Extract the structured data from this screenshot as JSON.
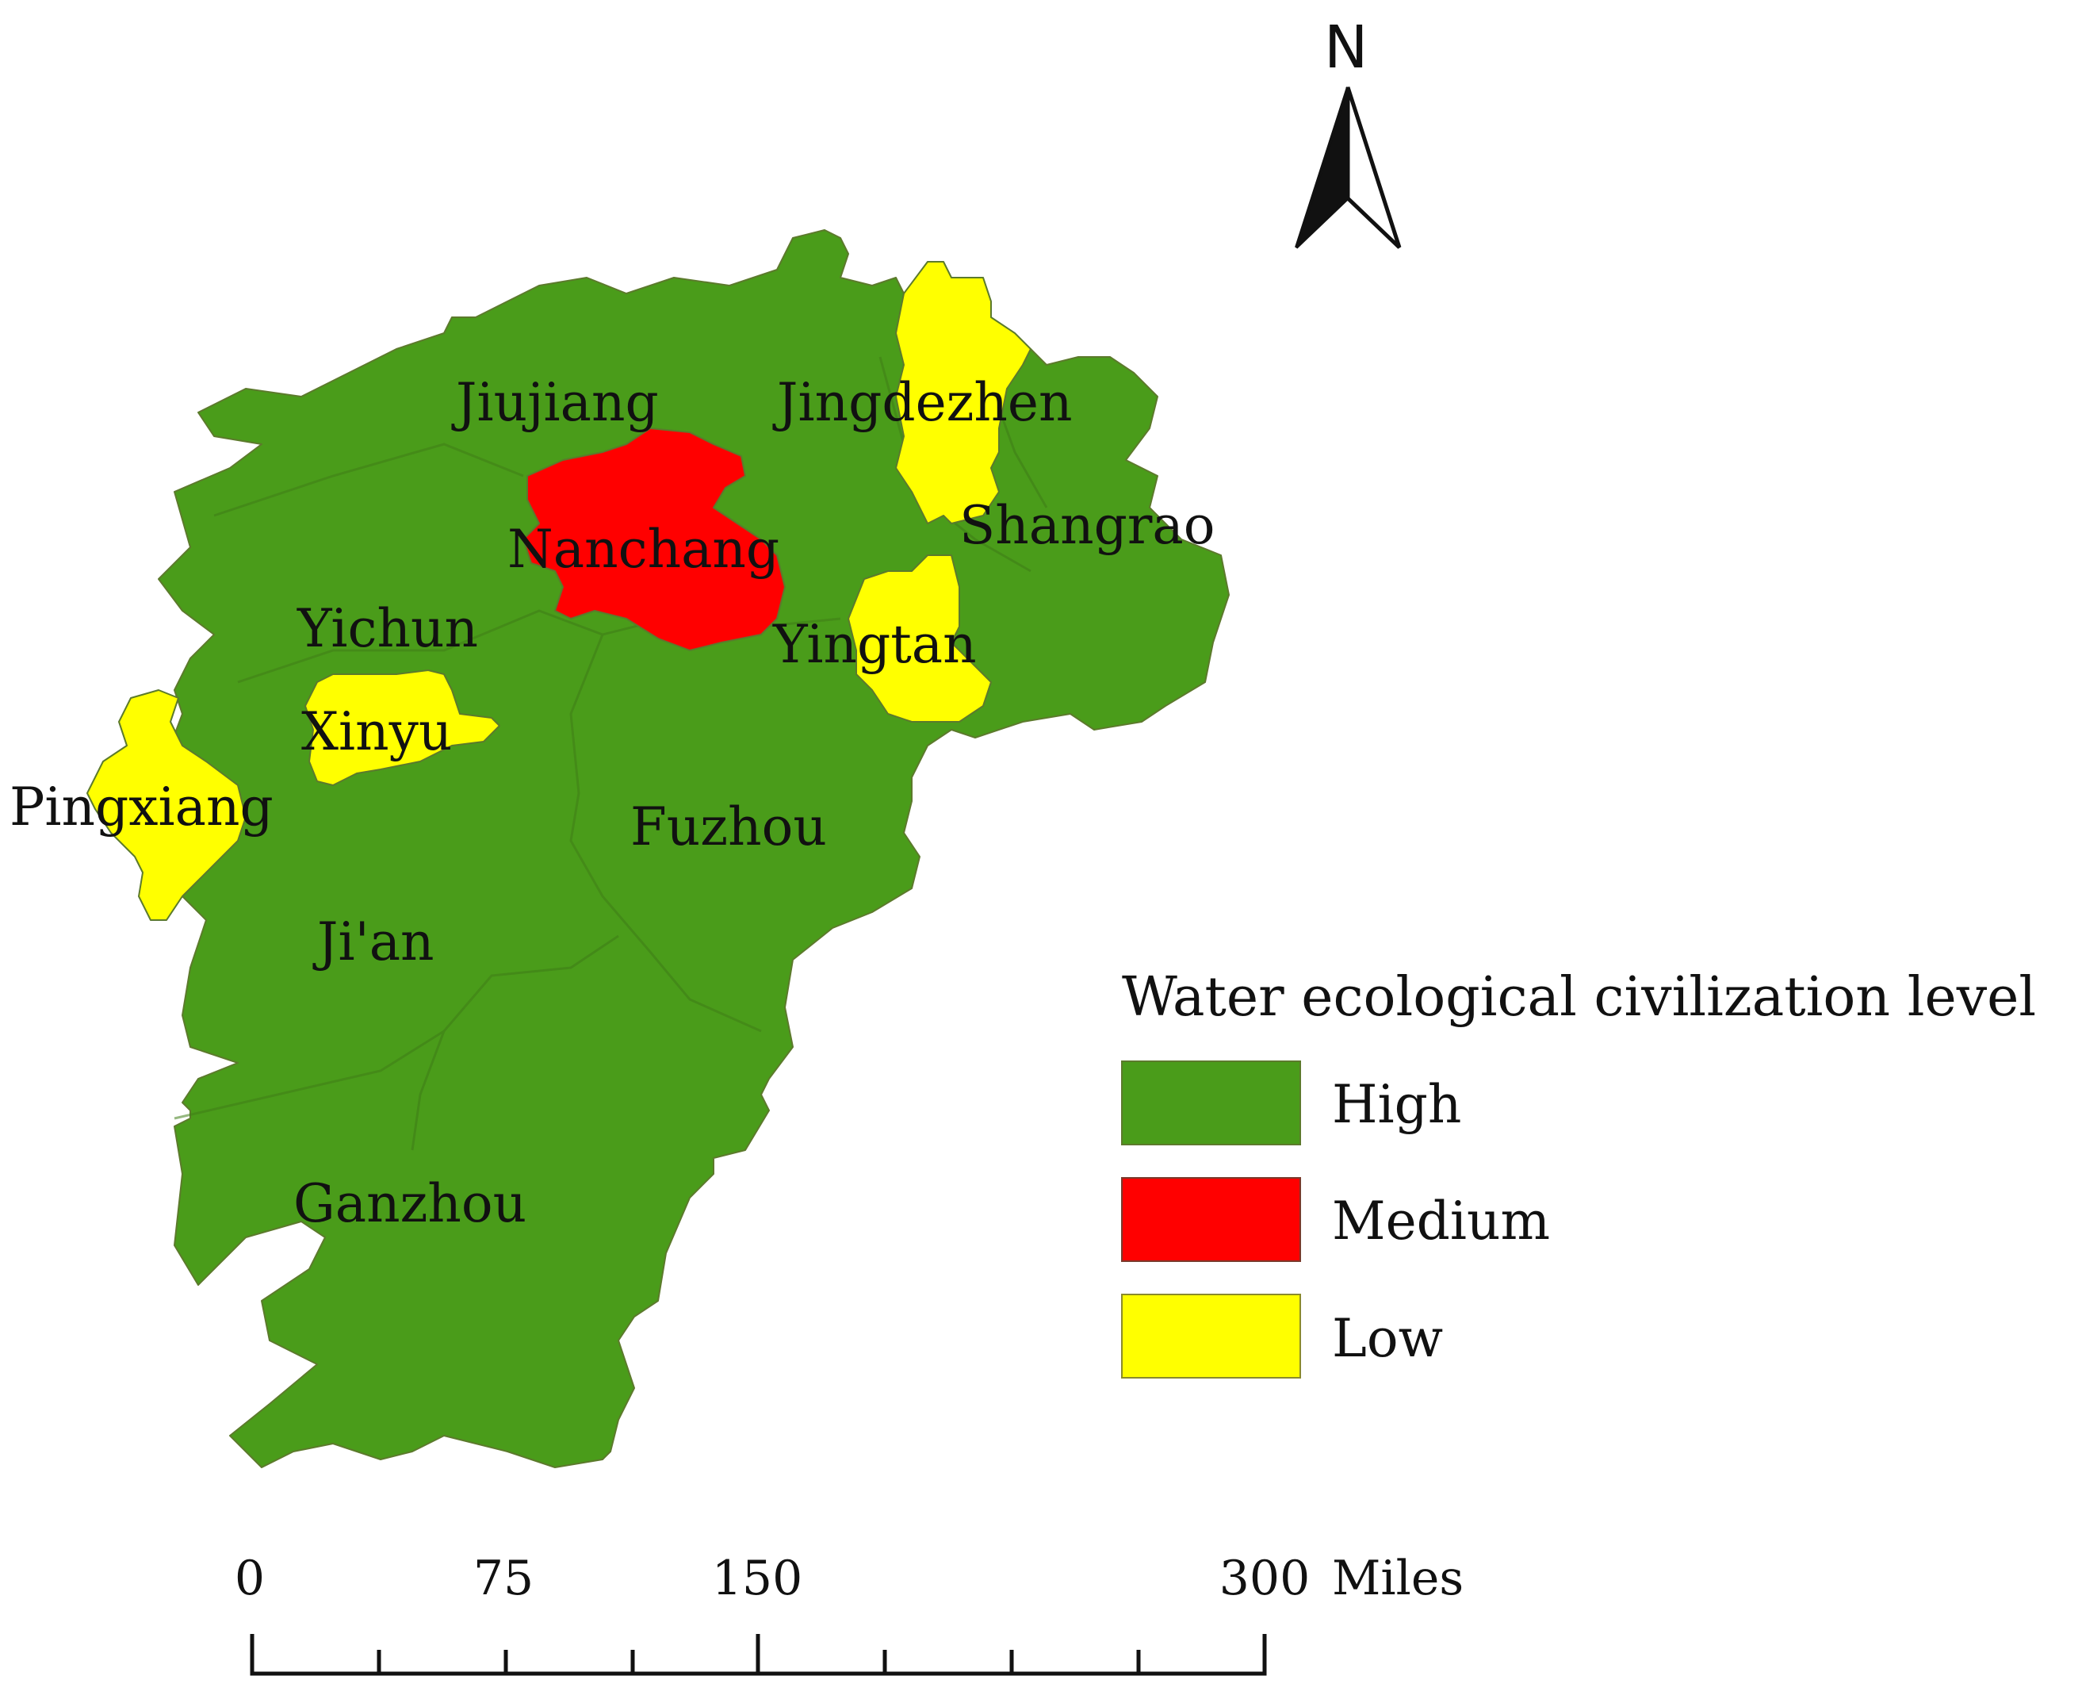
{
  "colors": {
    "high": "#4a9c1a",
    "medium": "#ff0000",
    "low": "#ffff00"
  },
  "regions": [
    {
      "name": "Jiujiang",
      "level": "high"
    },
    {
      "name": "Jingdezhen",
      "level": "low"
    },
    {
      "name": "Nanchang",
      "level": "medium"
    },
    {
      "name": "Shangrao",
      "level": "high"
    },
    {
      "name": "Yichun",
      "level": "high"
    },
    {
      "name": "Yingtan",
      "level": "low"
    },
    {
      "name": "Xinyu",
      "level": "low"
    },
    {
      "name": "Pingxiang",
      "level": "low"
    },
    {
      "name": "Fuzhou",
      "level": "high"
    },
    {
      "name": "Ji'an",
      "level": "high"
    },
    {
      "name": "Ganzhou",
      "level": "high"
    }
  ],
  "legend": {
    "title": "Water ecological civilization level",
    "items": [
      {
        "label": "High",
        "level": "high"
      },
      {
        "label": "Medium",
        "level": "medium"
      },
      {
        "label": "Low",
        "level": "low"
      }
    ]
  },
  "north_arrow": {
    "label": "N"
  },
  "scale_bar": {
    "ticks": [
      "0",
      "75",
      "150",
      "300"
    ],
    "unit": "Miles"
  }
}
